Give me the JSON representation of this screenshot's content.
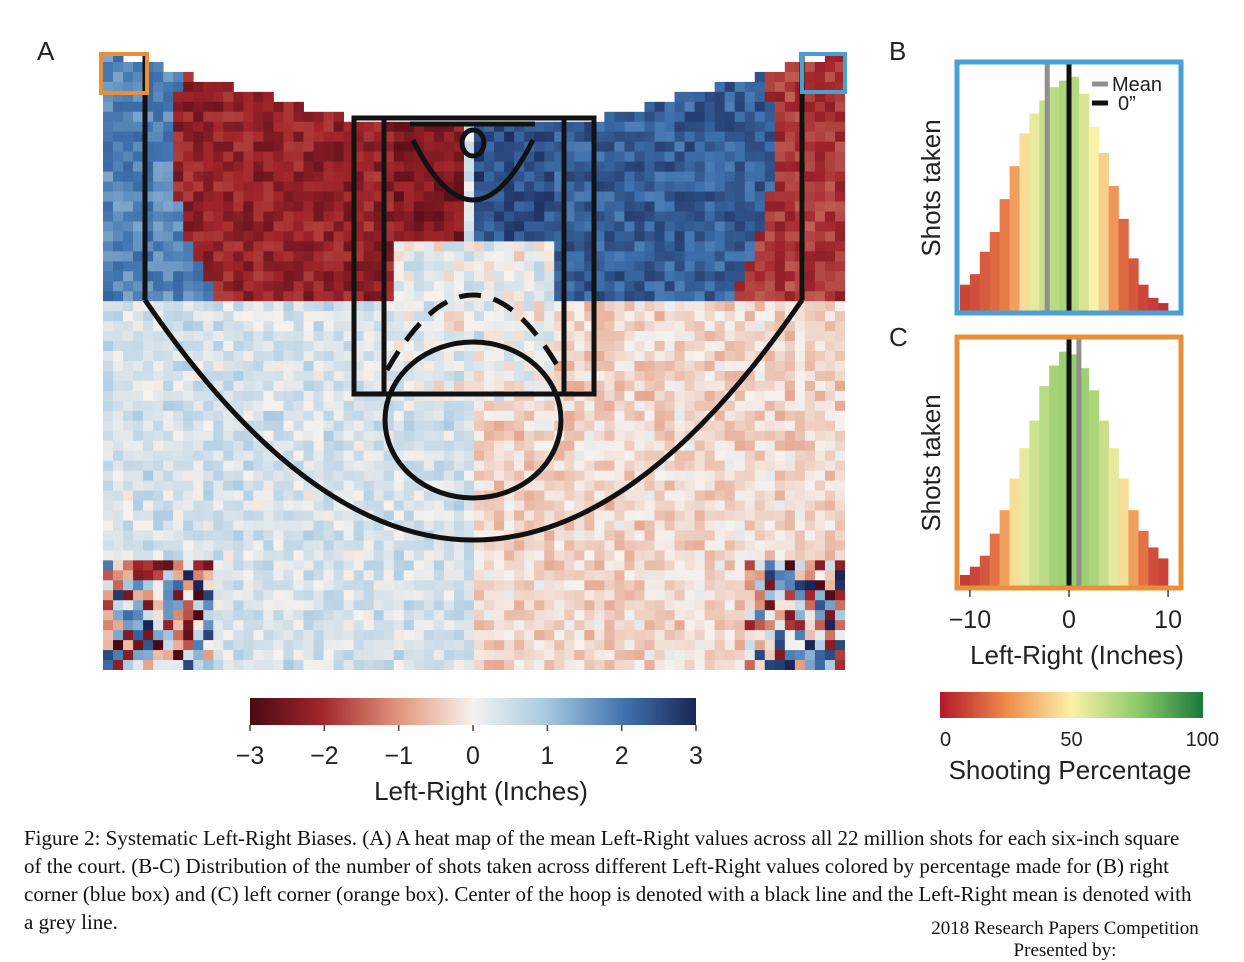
{
  "figure": {
    "panel_labels": {
      "a": "A",
      "b": "B",
      "c": "C"
    },
    "caption": "Figure 2: Systematic Left-Right Biases. (A) A heat map of the mean Left-Right values across all 22 million shots for each six-inch square of the court. (B-C) Distribution of the number of shots taken across different Left-Right values colored by percentage made for (B) right corner (blue box) and (C) left corner (orange box). Center of the hoop is denoted with a black line and the Left-Right mean is denoted with a grey line.",
    "footer": {
      "line1": "2018 Research Papers Competition",
      "line2": "Presented by:"
    }
  },
  "colors": {
    "right_corner_box": "#4a9fd3",
    "left_corner_box": "#e8913a",
    "court_lines": "#111111",
    "mean_line": "#8f8f8f",
    "zero_line": "#111111"
  },
  "chart_data": [
    {
      "type": "heatmap",
      "panel": "A",
      "title": "",
      "colorbar": {
        "label": "Left-Right (Inches)",
        "ticks": [
          "−3",
          "−2",
          "−1",
          "0",
          "1",
          "2",
          "3"
        ],
        "range": [
          -3,
          3
        ],
        "colormap": "red-white-blue (negative = red, positive = blue)"
      },
      "description_zones": [
        {
          "zone": "left baseline wing / left corner",
          "mean_left_right": 1.8
        },
        {
          "zone": "right baseline wing / right corner",
          "mean_left_right": -1.9
        },
        {
          "zone": "left mid-range arc",
          "mean_left_right": -2.2
        },
        {
          "zone": "right mid-range arc",
          "mean_left_right": 2.3
        },
        {
          "zone": "paint / lane",
          "mean_left_right": 0.3
        },
        {
          "zone": "left above the break",
          "mean_left_right": 0.4
        },
        {
          "zone": "right above the break",
          "mean_left_right": -0.3
        }
      ],
      "highlight_boxes": [
        "left corner (orange)",
        "right corner (blue)"
      ]
    },
    {
      "type": "bar",
      "panel": "B",
      "region": "right corner (blue box)",
      "ylabel": "Shots taken",
      "xlabel": "",
      "xlim": [
        -11,
        11
      ],
      "legend": {
        "entries": [
          "Mean",
          "0”"
        ],
        "placement": "top-right"
      },
      "mean_line_x": -2.2,
      "zero_line_x": 0,
      "bins": {
        "x": [
          -10.5,
          -9.5,
          -8.5,
          -7.5,
          -6.5,
          -5.5,
          -4.5,
          -3.5,
          -2.5,
          -1.5,
          -0.5,
          0.5,
          1.5,
          2.5,
          3.5,
          4.5,
          5.5,
          6.5,
          7.5,
          8.5,
          9.5
        ],
        "shots_taken": [
          20,
          28,
          45,
          60,
          85,
          110,
          135,
          150,
          160,
          170,
          175,
          178,
          165,
          140,
          120,
          95,
          70,
          40,
          20,
          10,
          6
        ],
        "shooting_percentage": [
          10,
          12,
          15,
          18,
          22,
          30,
          45,
          55,
          62,
          65,
          68,
          66,
          58,
          50,
          42,
          28,
          18,
          14,
          10,
          8,
          6
        ]
      }
    },
    {
      "type": "bar",
      "panel": "C",
      "region": "left corner (orange box)",
      "ylabel": "Shots taken",
      "xlabel": "Left-Right (Inches)",
      "xticks": [
        "−10",
        "0",
        "10"
      ],
      "xlim": [
        -11,
        11
      ],
      "mean_line_x": 1.0,
      "zero_line_x": 0,
      "bins": {
        "x": [
          -10.5,
          -9.5,
          -8.5,
          -7.5,
          -6.5,
          -5.5,
          -4.5,
          -3.5,
          -2.5,
          -1.5,
          -0.5,
          0.5,
          1.5,
          2.5,
          3.5,
          4.5,
          5.5,
          6.5,
          7.5,
          8.5,
          9.5
        ],
        "shots_taken": [
          8,
          14,
          22,
          38,
          55,
          78,
          100,
          120,
          145,
          160,
          170,
          168,
          158,
          142,
          120,
          100,
          78,
          55,
          40,
          28,
          20
        ],
        "shooting_percentage": [
          8,
          10,
          14,
          20,
          30,
          45,
          55,
          60,
          65,
          70,
          72,
          74,
          72,
          68,
          62,
          55,
          45,
          30,
          20,
          12,
          10
        ]
      }
    },
    {
      "type": "heatmap",
      "panel": "colorbar-shooting",
      "colorbar": {
        "label": "Shooting Percentage",
        "ticks": [
          "0",
          "50",
          "100"
        ],
        "range": [
          0,
          100
        ],
        "colormap": "red-yellow-green"
      }
    }
  ]
}
